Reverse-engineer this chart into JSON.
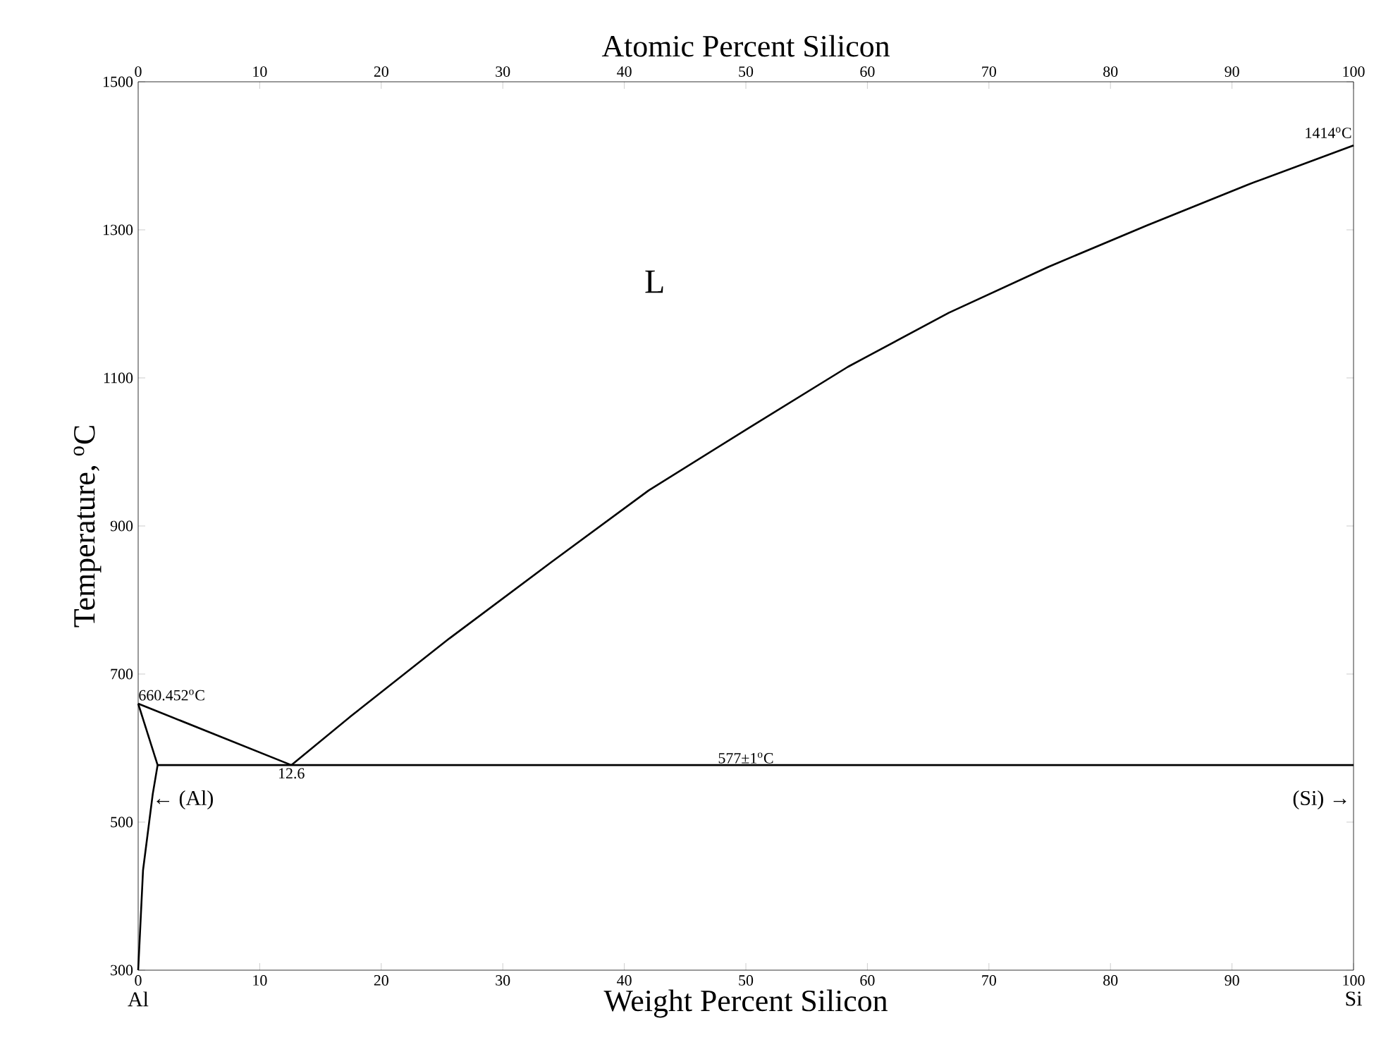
{
  "chart_data": {
    "type": "line",
    "xlabel": "Weight Percent Silicon",
    "x2label": "Atomic Percent Silicon",
    "ylabel": "Temperature, $^{o}$C",
    "xlim": [
      0,
      100
    ],
    "xticks": [
      0,
      10,
      20,
      30,
      40,
      50,
      60,
      70,
      80,
      90,
      100
    ],
    "x2lim": [
      0,
      100
    ],
    "x2ticks": [
      0,
      10,
      20,
      30,
      40,
      50,
      60,
      70,
      80,
      90,
      100
    ],
    "ylim": [
      300,
      1500
    ],
    "yticks": [
      300,
      500,
      700,
      900,
      1100,
      1300,
      1500
    ],
    "grid": false,
    "marker": "none",
    "line_style": "solid",
    "series": [
      {
        "color": "#000000",
        "x": [
          0,
          12.6
        ],
        "values": [
          660,
          577
        ]
      },
      {
        "color": "#000000",
        "x": [
          12.6,
          17.5,
          25.6,
          33.9,
          42.0,
          50.3,
          58.4,
          66.7,
          74.9,
          83.0,
          91.3,
          100
        ],
        "values": [
          577,
          643,
          748,
          850,
          948,
          1033,
          1115,
          1188,
          1250,
          1306,
          1361,
          1414
        ]
      },
      {
        "color": "#000000",
        "x": [
          1.6,
          100
        ],
        "values": [
          577,
          577
        ]
      },
      {
        "color": "#000000",
        "x": [
          0,
          1.6
        ],
        "values": [
          660,
          577
        ]
      },
      {
        "color": "#000000",
        "x": [
          1.6,
          1.2,
          0.4,
          0.15,
          0
        ],
        "values": [
          577,
          538,
          435,
          350,
          300
        ]
      }
    ],
    "annotations": [
      {
        "text": "660.452$^{o}$C",
        "x": 0,
        "y": 660
      },
      {
        "text": "12.6",
        "x": 12.6,
        "y": 577
      },
      {
        "text": "577±1$^{o}$C",
        "x": 50,
        "y": 577
      },
      {
        "text": "1414$^{o}$C",
        "x": 100,
        "y": 1414
      },
      "L",
      "← (Al)",
      "(Si) →",
      "Al",
      "Si"
    ]
  }
}
